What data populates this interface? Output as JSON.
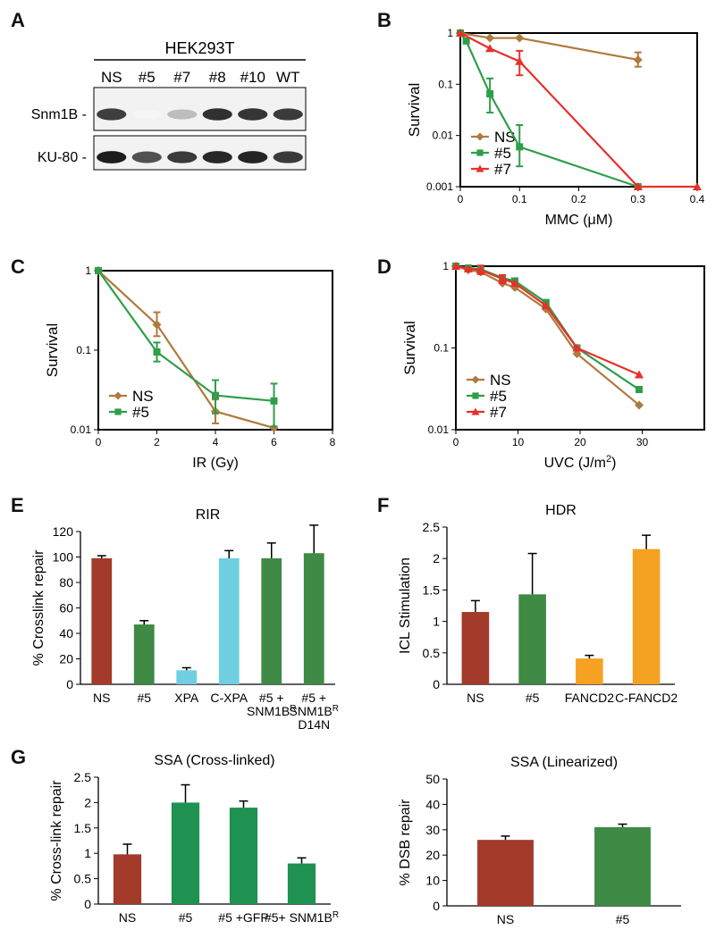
{
  "panels": {
    "a": {
      "letter": "A",
      "cell_line": "HEK293T",
      "lanes": [
        "NS",
        "#5",
        "#7",
        "#8",
        "#10",
        "WT"
      ],
      "rows": [
        {
          "label": "Snm1B",
          "intensity": [
            0.82,
            0.04,
            0.28,
            0.88,
            0.86,
            0.84
          ]
        },
        {
          "label": "KU-80",
          "intensity": [
            0.96,
            0.74,
            0.84,
            0.92,
            0.93,
            0.84
          ]
        }
      ]
    },
    "b": {
      "letter": "B"
    },
    "c": {
      "letter": "C"
    },
    "d": {
      "letter": "D"
    },
    "e": {
      "letter": "E"
    },
    "f": {
      "letter": "F"
    },
    "g": {
      "letter": "G"
    }
  },
  "chart_data": [
    {
      "id": "b",
      "type": "line",
      "log_y": true,
      "xlabel": "MMC (μM)",
      "ylabel": "Survival",
      "xlim": [
        0,
        0.4
      ],
      "ylim": [
        0.001,
        1
      ],
      "xticks": [
        0,
        0.1,
        0.2,
        0.3,
        0.4
      ],
      "xtick_labels": [
        "0",
        "0.1",
        "0.2",
        "0.3",
        "0.4"
      ],
      "yticks": [
        0.001,
        0.01,
        0.1,
        1
      ],
      "ytick_labels": [
        "0.001",
        "0.01",
        "0.1",
        "1"
      ],
      "legend": "bottom-left",
      "series": [
        {
          "name": "NS",
          "color": "#b07a3c",
          "marker": "diamond",
          "x": [
            0,
            0.05,
            0.1,
            0.3
          ],
          "y": [
            1,
            0.8,
            0.8,
            0.3
          ],
          "err_hi": [
            null,
            null,
            null,
            0.42
          ],
          "err_lo": [
            null,
            null,
            null,
            0.22
          ]
        },
        {
          "name": "#5",
          "color": "#2e9e4a",
          "marker": "square",
          "x": [
            0,
            0.01,
            0.05,
            0.1,
            0.3
          ],
          "y": [
            1,
            0.7,
            0.065,
            0.006,
            0.001
          ],
          "err_hi": [
            null,
            null,
            0.13,
            0.016,
            null
          ],
          "err_lo": [
            null,
            null,
            0.028,
            0.0025,
            null
          ]
        },
        {
          "name": "#7",
          "color": "#e8302a",
          "marker": "triangle",
          "x": [
            0,
            0.05,
            0.1,
            0.3,
            0.4
          ],
          "y": [
            1,
            0.5,
            0.28,
            0.001,
            0.001
          ],
          "err_hi": [
            null,
            null,
            0.45,
            null,
            null
          ],
          "err_lo": [
            null,
            null,
            0.15,
            null,
            null
          ]
        }
      ]
    },
    {
      "id": "c",
      "type": "line",
      "log_y": true,
      "xlabel": "IR (Gy)",
      "ylabel": "Survival",
      "xlim": [
        0,
        8
      ],
      "ylim": [
        0.01,
        1
      ],
      "xticks": [
        0,
        2,
        4,
        6,
        8
      ],
      "xtick_labels": [
        "0",
        "2",
        "4",
        "6",
        "8"
      ],
      "yticks": [
        0.01,
        0.1,
        1
      ],
      "ytick_labels": [
        "0.01",
        "0.1",
        "1"
      ],
      "legend": "bottom-left",
      "series": [
        {
          "name": "NS",
          "color": "#b07a3c",
          "marker": "diamond",
          "x": [
            0,
            2,
            4,
            6
          ],
          "y": [
            1,
            0.21,
            0.017,
            0.0105
          ],
          "err_hi": [
            null,
            0.3,
            0.024,
            null
          ],
          "err_lo": [
            null,
            0.15,
            0.012,
            null
          ]
        },
        {
          "name": "#5",
          "color": "#2e9e4a",
          "marker": "square",
          "x": [
            0,
            2,
            4,
            6
          ],
          "y": [
            1,
            0.095,
            0.027,
            0.023
          ],
          "err_hi": [
            null,
            0.125,
            0.042,
            0.038
          ],
          "err_lo": [
            null,
            0.072,
            0.016,
            0.011
          ]
        }
      ]
    },
    {
      "id": "d",
      "type": "line",
      "log_y": true,
      "xlabel": "UVC (J/m",
      "xlabel_sup": "2",
      "xlabel_tail": ")",
      "ylabel": "Survival",
      "xlim": [
        0,
        40
      ],
      "ylim": [
        0.01,
        1
      ],
      "xticks": [
        0,
        10,
        20,
        30
      ],
      "xtick_labels": [
        "0",
        "10",
        "20",
        "30"
      ],
      "yticks": [
        0.01,
        0.1,
        1
      ],
      "ytick_labels": [
        "0.01",
        "0.1",
        "1"
      ],
      "legend": "bottom-left",
      "series": [
        {
          "name": "NS",
          "color": "#b07a3c",
          "marker": "diamond",
          "x": [
            0,
            2,
            4,
            7.5,
            9.5,
            14.5,
            19.5,
            29.5
          ],
          "y": [
            1,
            0.9,
            0.85,
            0.62,
            0.55,
            0.3,
            0.085,
            0.02
          ],
          "err_hi": [],
          "err_lo": []
        },
        {
          "name": "#5",
          "color": "#2e9e4a",
          "marker": "square",
          "x": [
            0,
            2,
            4,
            7.5,
            9.5,
            14.5,
            19.5,
            29.5
          ],
          "y": [
            1,
            0.95,
            0.92,
            0.72,
            0.66,
            0.36,
            0.1,
            0.031
          ],
          "err_hi": [],
          "err_lo": []
        },
        {
          "name": "#7",
          "color": "#e8302a",
          "marker": "triangle",
          "x": [
            0,
            2,
            4,
            7.5,
            9.5,
            14.5,
            19.5,
            29.5
          ],
          "y": [
            1,
            0.93,
            0.9,
            0.7,
            0.62,
            0.33,
            0.1,
            0.047
          ],
          "err_hi": [
            null,
            null,
            1.02,
            0.78,
            null,
            null,
            null,
            null
          ],
          "err_lo": [
            null,
            null,
            0.8,
            0.62,
            null,
            null,
            null,
            null
          ]
        }
      ]
    },
    {
      "id": "e",
      "type": "bar",
      "title": "RIR",
      "ylabel": "% Crosslink repair",
      "ylim": [
        0,
        120
      ],
      "yticks": [
        0,
        20,
        40,
        60,
        80,
        100,
        120
      ],
      "categories": [
        [
          "NS"
        ],
        [
          "#5"
        ],
        [
          "XPA"
        ],
        [
          "C-XPA"
        ],
        [
          "#5 +",
          "SNM1B",
          "R",
          ""
        ],
        [
          "#5 +",
          "SNM1B",
          "R",
          "D14N"
        ]
      ],
      "values": [
        99,
        47,
        11,
        99,
        99,
        103
      ],
      "errors": [
        2,
        3,
        2,
        6,
        12,
        22
      ],
      "colors": [
        "#a33a2a",
        "#3f8a45",
        "#6fcfe0",
        "#6fcfe0",
        "#3f8a45",
        "#3f8a45"
      ]
    },
    {
      "id": "f",
      "type": "bar",
      "title": "HDR",
      "ylabel": "ICL Stimulation",
      "ylim": [
        0,
        2.5
      ],
      "yticks": [
        0,
        0.5,
        1,
        1.5,
        2,
        2.5
      ],
      "categories": [
        [
          "NS"
        ],
        [
          "#5"
        ],
        [
          "FANCD2"
        ],
        [
          "C-FANCD2"
        ]
      ],
      "values": [
        1.15,
        1.43,
        0.41,
        2.15
      ],
      "errors": [
        0.18,
        0.65,
        0.05,
        0.22
      ],
      "colors": [
        "#a33a2a",
        "#3f8a45",
        "#f5a121",
        "#f5a121"
      ]
    },
    {
      "id": "g1",
      "type": "bar",
      "title": "SSA (Cross-linked)",
      "ylabel": "% Cross-link repair",
      "ylim": [
        0,
        2.5
      ],
      "yticks": [
        0,
        0.5,
        1,
        1.5,
        2,
        2.5
      ],
      "categories": [
        [
          "NS"
        ],
        [
          "#5"
        ],
        [
          "#5 +GFP"
        ],
        [
          "#5+ SNM1B",
          "R"
        ]
      ],
      "values": [
        0.98,
        2.0,
        1.9,
        0.8
      ],
      "errors": [
        0.2,
        0.35,
        0.13,
        0.11
      ],
      "colors": [
        "#a33a2a",
        "#1f9150",
        "#1f9150",
        "#1f9150"
      ]
    },
    {
      "id": "g2",
      "type": "bar",
      "title": "SSA (Linearized)",
      "ylabel": "% DSB repair",
      "ylim": [
        0,
        50
      ],
      "yticks": [
        0,
        10,
        20,
        30,
        40,
        50
      ],
      "categories": [
        [
          "NS"
        ],
        [
          "#5"
        ]
      ],
      "values": [
        26,
        31
      ],
      "errors": [
        1.5,
        1.2
      ],
      "colors": [
        "#a33a2a",
        "#3f8a45"
      ]
    }
  ]
}
